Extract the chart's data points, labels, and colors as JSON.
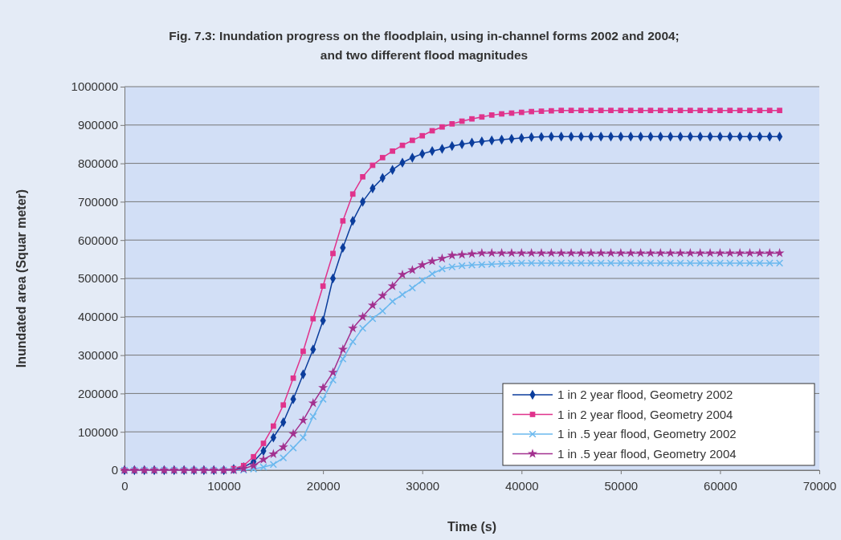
{
  "chart_data": {
    "type": "line",
    "title": "Fig. 7.3: Inundation progress on the floodplain, using in-channel forms 2002 and 2004; and two different flood magnitudes",
    "xlabel": "Time (s)",
    "ylabel": "Inundated area (Squar meter)",
    "x": [
      0,
      1000,
      2000,
      3000,
      4000,
      5000,
      6000,
      7000,
      8000,
      9000,
      10000,
      11000,
      12000,
      13000,
      14000,
      15000,
      16000,
      17000,
      18000,
      19000,
      20000,
      21000,
      22000,
      23000,
      24000,
      25000,
      26000,
      27000,
      28000,
      29000,
      30000,
      31000,
      32000,
      33000,
      34000,
      35000,
      36000,
      37000,
      38000,
      39000,
      40000,
      41000,
      42000,
      43000,
      44000,
      45000,
      46000,
      47000,
      48000,
      49000,
      50000,
      51000,
      52000,
      53000,
      54000,
      55000,
      56000,
      57000,
      58000,
      59000,
      60000,
      61000,
      62000,
      63000,
      64000,
      65000,
      66000
    ],
    "xlim": [
      0,
      70000
    ],
    "xticks": [
      0,
      10000,
      20000,
      30000,
      40000,
      50000,
      60000,
      70000
    ],
    "ylim": [
      0,
      1000000
    ],
    "yticks": [
      0,
      100000,
      200000,
      300000,
      400000,
      500000,
      600000,
      700000,
      800000,
      900000,
      1000000
    ],
    "grid": "y",
    "legend": "bottom right",
    "line_style": "solid",
    "series": [
      {
        "name": "1 in 2 year flood, Geometry 2002",
        "color": "#0b3d9c",
        "marker": "diamond",
        "values": [
          0,
          0,
          0,
          0,
          0,
          0,
          0,
          0,
          0,
          0,
          0,
          3000,
          8000,
          22000,
          50000,
          85000,
          125000,
          185000,
          250000,
          315000,
          390000,
          500000,
          580000,
          650000,
          700000,
          735000,
          762000,
          783000,
          802000,
          815000,
          825000,
          832000,
          838000,
          845000,
          850000,
          854000,
          857000,
          860000,
          862000,
          864000,
          866000,
          868000,
          869000,
          870000,
          870000,
          870000,
          870000,
          870000,
          870000,
          870000,
          870000,
          870000,
          870000,
          870000,
          870000,
          870000,
          870000,
          870000,
          870000,
          870000,
          870000,
          870000,
          870000,
          870000,
          870000,
          870000,
          870000
        ]
      },
      {
        "name": "1 in 2 year flood, Geometry 2004",
        "color": "#e0338c",
        "marker": "square",
        "values": [
          0,
          0,
          0,
          0,
          0,
          0,
          0,
          0,
          0,
          0,
          0,
          4000,
          12000,
          35000,
          70000,
          115000,
          170000,
          240000,
          310000,
          395000,
          480000,
          565000,
          650000,
          720000,
          765000,
          795000,
          815000,
          832000,
          847000,
          860000,
          872000,
          885000,
          895000,
          903000,
          910000,
          916000,
          921000,
          926000,
          929000,
          931000,
          933000,
          935000,
          936000,
          937000,
          938000,
          938000,
          938000,
          938000,
          938000,
          938000,
          938000,
          938000,
          938000,
          938000,
          938000,
          938000,
          938000,
          938000,
          938000,
          938000,
          938000,
          938000,
          938000,
          938000,
          938000,
          938000,
          938000
        ]
      },
      {
        "name": "1 in .5 year flood, Geometry 2002",
        "color": "#6ab8ee",
        "marker": "cross",
        "values": [
          0,
          0,
          0,
          0,
          0,
          0,
          0,
          0,
          0,
          0,
          0,
          0,
          0,
          3000,
          8000,
          15000,
          32000,
          58000,
          85000,
          140000,
          185000,
          235000,
          290000,
          335000,
          370000,
          395000,
          415000,
          440000,
          458000,
          475000,
          495000,
          512000,
          525000,
          530000,
          533000,
          535000,
          536000,
          537000,
          538000,
          539000,
          540000,
          540000,
          540000,
          540000,
          540000,
          540000,
          540000,
          540000,
          540000,
          540000,
          540000,
          540000,
          540000,
          540000,
          540000,
          540000,
          540000,
          540000,
          540000,
          540000,
          540000,
          540000,
          540000,
          540000,
          540000,
          540000,
          540000
        ]
      },
      {
        "name": "1 in .5 year flood, Geometry 2004",
        "color": "#a3318f",
        "marker": "star",
        "values": [
          0,
          0,
          0,
          0,
          0,
          0,
          0,
          0,
          0,
          0,
          0,
          0,
          4000,
          12000,
          28000,
          42000,
          60000,
          95000,
          130000,
          175000,
          215000,
          255000,
          315000,
          370000,
          400000,
          430000,
          455000,
          480000,
          510000,
          522000,
          535000,
          545000,
          552000,
          560000,
          562000,
          564000,
          566000,
          566000,
          566000,
          566000,
          566000,
          566000,
          566000,
          566000,
          566000,
          566000,
          566000,
          566000,
          566000,
          566000,
          566000,
          566000,
          566000,
          566000,
          566000,
          566000,
          566000,
          566000,
          566000,
          566000,
          566000,
          566000,
          566000,
          566000,
          566000,
          566000,
          566000
        ]
      }
    ]
  }
}
